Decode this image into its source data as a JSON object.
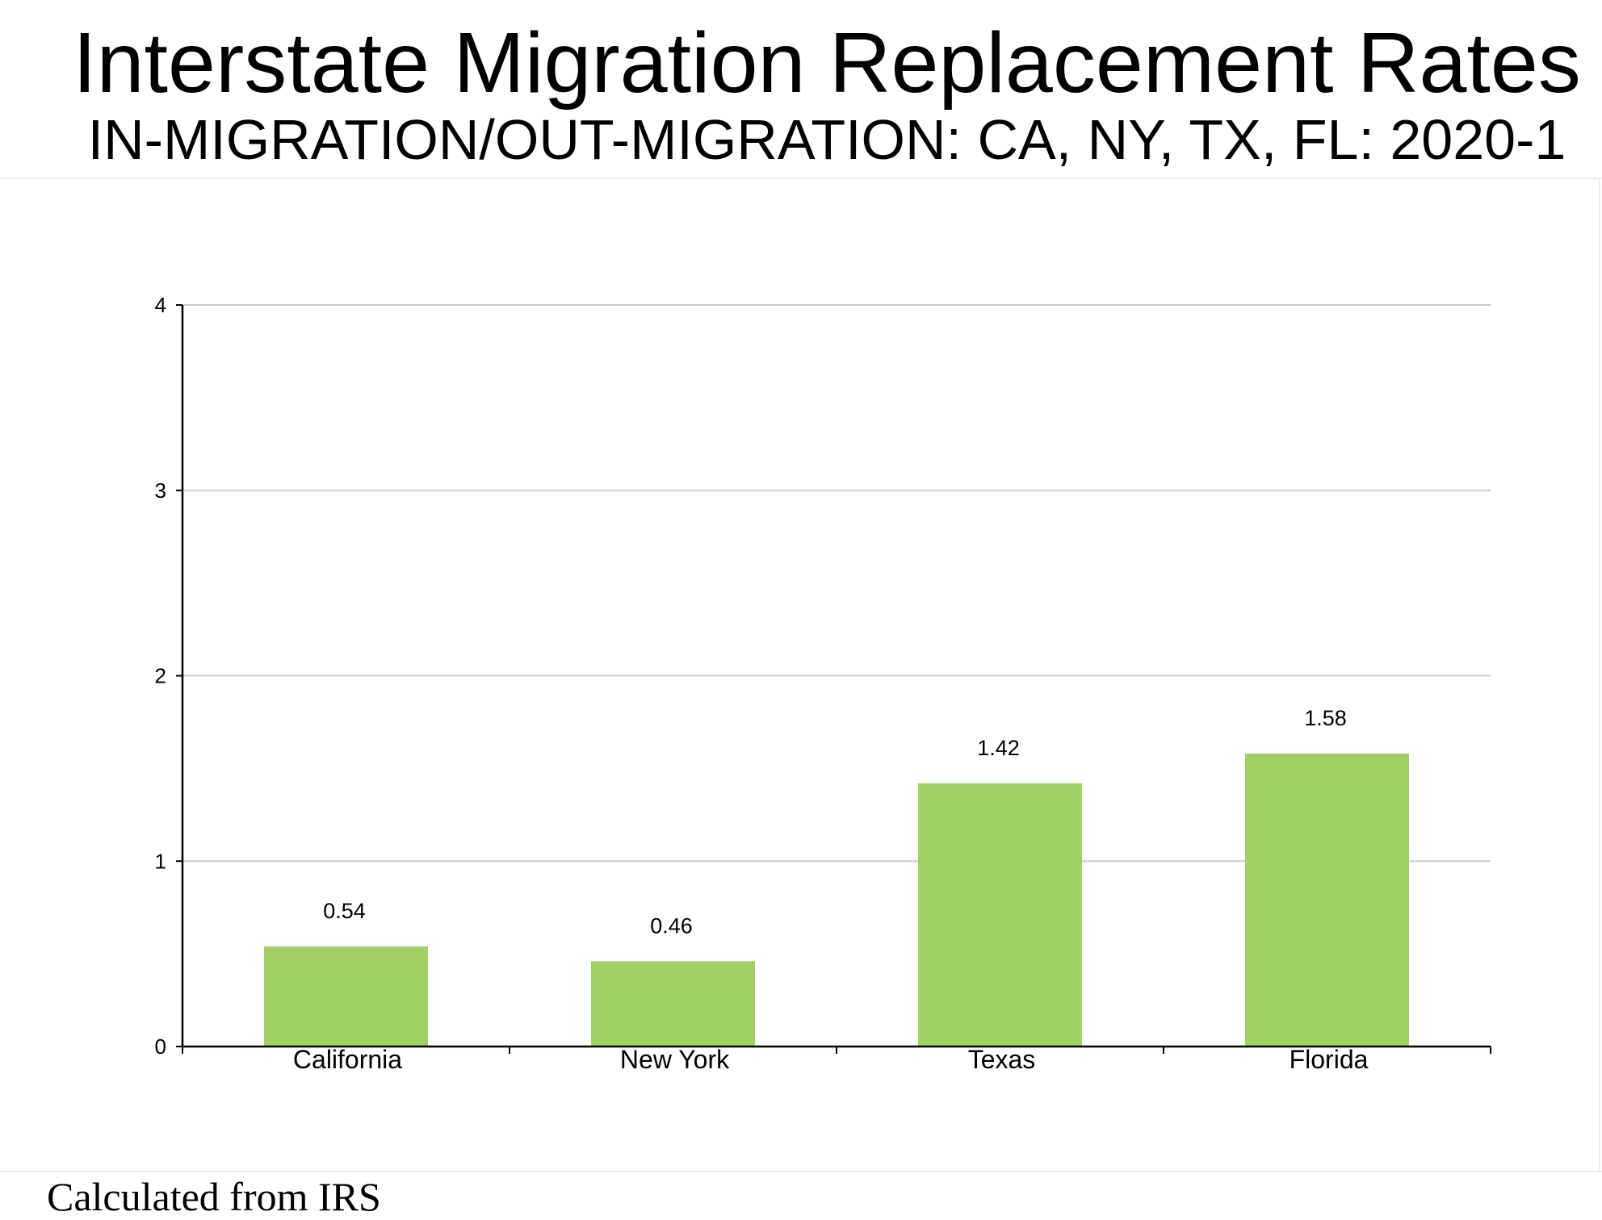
{
  "header": {
    "title": "Interstate Migration Replacement Rates",
    "subtitle": "IN-MIGRATION/OUT-MIGRATION: CA, NY, TX, FL: 2020-1"
  },
  "footer": {
    "note": "Calculated from IRS"
  },
  "chart_data": {
    "type": "bar",
    "title": "Interstate Migration Replacement Rates",
    "subtitle": "IN-MIGRATION/OUT-MIGRATION: CA, NY, TX, FL: 2020-1",
    "xlabel": "",
    "ylabel": "",
    "categories": [
      "California",
      "New York",
      "Texas",
      "Florida"
    ],
    "values": [
      0.54,
      0.46,
      1.42,
      1.58
    ],
    "data_labels": [
      "0.54",
      "0.46",
      "1.42",
      "1.58"
    ],
    "ylim": [
      0,
      4
    ],
    "yticks": [
      0,
      1,
      2,
      3,
      4
    ],
    "grid": true,
    "legend": "none",
    "bar_color": "#a1d064"
  }
}
